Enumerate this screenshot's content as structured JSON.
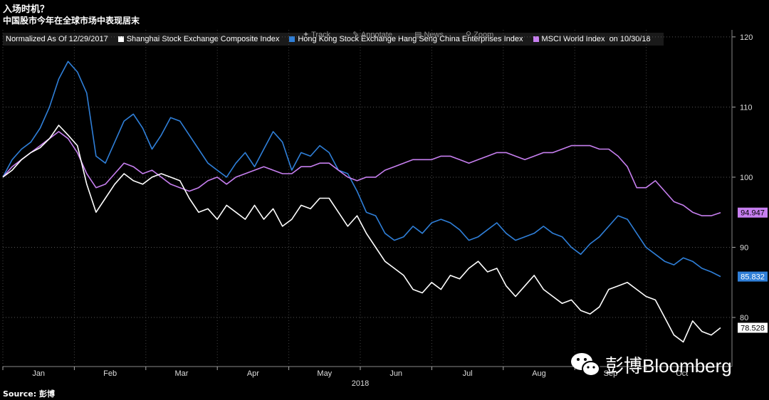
{
  "header": {
    "title": "入场时机？",
    "subtitle": "中国股市今年在全球市场中表现居末"
  },
  "legend": {
    "note": "Normalized As Of 12/29/2017",
    "date_note": "on 10/30/18"
  },
  "toolbar": {
    "track": "Track",
    "annotate": "Annotate",
    "news": "News",
    "zoom": "Zoom"
  },
  "footer": {
    "source": "Source:  彭博"
  },
  "watermark": {
    "text": "彭博Bloomberg"
  },
  "colors": {
    "background": "#000000",
    "shanghai": "#ffffff",
    "hangseng": "#2f7fd8",
    "msci": "#c77ff0",
    "grid": "#555555"
  },
  "chart_data": {
    "type": "line",
    "xlabel": "2018",
    "x_ticks": [
      "Jan",
      "Feb",
      "Mar",
      "Apr",
      "May",
      "Jun",
      "Jul",
      "Aug",
      "Sep",
      "Oct"
    ],
    "ylim": [
      73,
      121
    ],
    "y_ticks": [
      80,
      90,
      100,
      110,
      120
    ],
    "grid": true,
    "legend_position": "top-left",
    "series": [
      {
        "name": "Shanghai Stock Exchange Composite Index",
        "color": "#ffffff",
        "last_label": "78.528",
        "values": [
          100,
          101,
          102.5,
          103.5,
          104.2,
          105.5,
          107.4,
          106,
          104.5,
          99,
          95,
          97,
          99,
          100.5,
          99.5,
          99,
          100,
          100.5,
          100,
          99.5,
          97,
          95,
          95.5,
          94,
          96,
          95,
          94,
          96,
          94,
          95.5,
          93,
          94,
          96,
          95.5,
          97,
          97,
          95,
          93,
          94.5,
          92,
          90,
          88,
          87,
          86,
          84,
          83.5,
          85,
          84,
          86,
          85.5,
          87,
          88,
          86.5,
          87,
          84.5,
          83,
          84.5,
          86,
          84,
          83,
          82,
          82.5,
          81,
          80.5,
          81.5,
          84,
          84.5,
          85,
          84,
          83,
          82.5,
          80,
          77.5,
          76.5,
          79.5,
          78,
          77.5,
          78.53
        ]
      },
      {
        "name": "Hong Kong Stock Exchange Hang Seng China Enterprises Index",
        "color": "#2f7fd8",
        "last_label": "85.832",
        "values": [
          100,
          102.5,
          104,
          105,
          107,
          110,
          114,
          116.5,
          115,
          112,
          103,
          102,
          105,
          108,
          109,
          107,
          104,
          106,
          108.5,
          108,
          106,
          104,
          102,
          101,
          100,
          102,
          103.5,
          101.5,
          104,
          106.5,
          105,
          101,
          103.5,
          103,
          104.5,
          103.5,
          101,
          100.5,
          98,
          95,
          94.5,
          92,
          91,
          91.5,
          93,
          92,
          93.5,
          94,
          93.5,
          92.5,
          91,
          91.5,
          92.5,
          93.5,
          92,
          91,
          91.5,
          92,
          93,
          92,
          91.5,
          90,
          89,
          90.5,
          91.5,
          93,
          94.5,
          94,
          92,
          90,
          89,
          88,
          87.5,
          88.5,
          88,
          87,
          86.5,
          85.83
        ]
      },
      {
        "name": "MSCI World Index",
        "color": "#c77ff0",
        "last_label": "94.947",
        "values": [
          100,
          101.5,
          102.5,
          103.5,
          104.5,
          105.5,
          106.5,
          105.5,
          103.5,
          100.5,
          98.5,
          99,
          100.5,
          102,
          101.5,
          100.5,
          101,
          100,
          99,
          98.5,
          98,
          98.5,
          99.5,
          100,
          99,
          100,
          100.5,
          101,
          101.5,
          101,
          100.5,
          100.5,
          101.5,
          101.5,
          102,
          102,
          101,
          100,
          99.5,
          100,
          100,
          101,
          101.5,
          102,
          102.5,
          102.5,
          102.5,
          103,
          103,
          102.5,
          102,
          102.5,
          103,
          103.5,
          103.5,
          103,
          102.5,
          103,
          103.5,
          103.5,
          104,
          104.5,
          104.5,
          104.5,
          104,
          104,
          103,
          101.5,
          98.5,
          98.5,
          99.5,
          98,
          96.5,
          96,
          95,
          94.5,
          94.5,
          94.95
        ]
      }
    ]
  }
}
